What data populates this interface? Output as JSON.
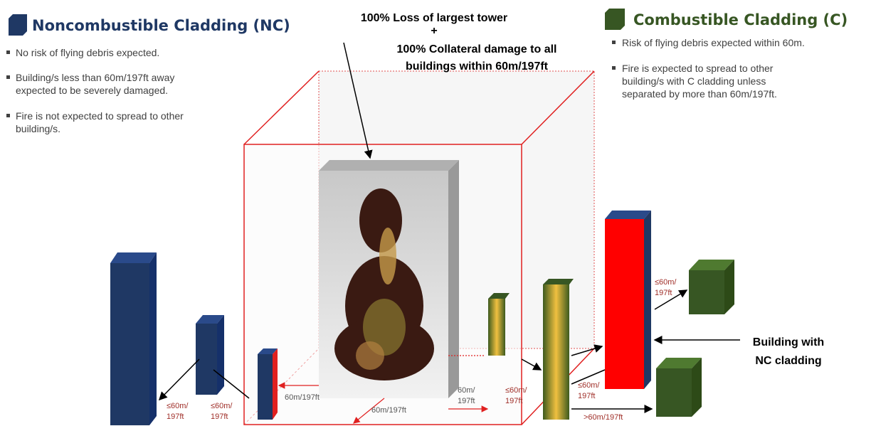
{
  "left_panel": {
    "title": "Noncombustible Cladding (NC)",
    "bullets": [
      [
        "No risk of flying debris expected."
      ],
      [
        "Building/s less than 60m/197ft away",
        "expected to be severely damaged."
      ],
      [
        "Fire is not expected to spread to other",
        "building/s."
      ]
    ]
  },
  "center_callout": {
    "line1": "100% Loss of largest tower",
    "plus": "+",
    "line2": "100% Collateral damage to all",
    "line3": "buildings within 60m/197ft"
  },
  "right_panel": {
    "title": "Combustible Cladding (C)",
    "bullets": [
      [
        "Risk of flying debris expected within 60m."
      ],
      [
        "Fire is expected to spread to other",
        "building/s with C cladding unless",
        "separated by more than 60m/197ft."
      ]
    ]
  },
  "distance_labels": [
    {
      "lines": [
        "≤60m/",
        "197ft"
      ]
    },
    {
      "lines": [
        "≤60m/",
        "197ft"
      ]
    },
    {
      "lines": [
        "60m/197ft"
      ]
    },
    {
      "lines": [
        "60m/197ft"
      ]
    },
    {
      "lines": [
        "60m/",
        "197ft"
      ]
    },
    {
      "lines": [
        "≤60m/",
        "197ft"
      ]
    },
    {
      "lines": [
        "≤60m/",
        "197ft"
      ]
    },
    {
      "lines": [
        "≤60m/",
        "197ft"
      ]
    },
    {
      "lines": [
        ">60m/197ft"
      ]
    }
  ],
  "building_note": {
    "lines": [
      "Building with",
      "NC cladding"
    ]
  }
}
